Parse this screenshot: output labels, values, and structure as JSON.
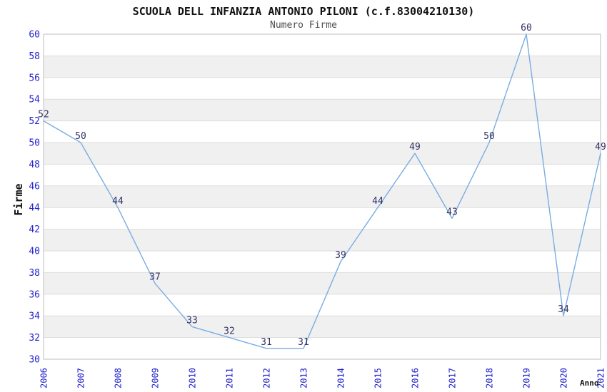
{
  "chart": {
    "title": "SCUOLA DELL INFANZIA ANTONIO PILONI (c.f.83004210130)",
    "subtitle": "Numero Firme",
    "ylabel": "Firme",
    "xlabel": "Anno"
  },
  "chart_data": {
    "type": "line",
    "title": "SCUOLA DELL INFANZIA ANTONIO PILONI (c.f.83004210130)",
    "subtitle": "Numero Firme",
    "xlabel": "Anno",
    "ylabel": "Firme",
    "categories": [
      "2006",
      "2007",
      "2008",
      "2009",
      "2010",
      "2011",
      "2012",
      "2013",
      "2014",
      "2015",
      "2016",
      "2017",
      "2018",
      "2019",
      "2020",
      "2021"
    ],
    "series": [
      {
        "name": "Numero Firme",
        "values": [
          52,
          50,
          44,
          37,
          33,
          32,
          31,
          31,
          39,
          44,
          49,
          43,
          50,
          60,
          34,
          49
        ]
      }
    ],
    "data_labels": true,
    "ylim": [
      30,
      60
    ],
    "ytick_step": 2,
    "grid": true,
    "legend_position": "none",
    "band_fill": true,
    "colors": {
      "line": "#79ADE2",
      "tick_label": "#2222CE",
      "data_label": "#333366",
      "band": "#F0F0F0",
      "gridline": "#DDDDDD",
      "border": "#C9C9C9",
      "title": "#111111",
      "subtitle": "#4D4D4D"
    }
  }
}
